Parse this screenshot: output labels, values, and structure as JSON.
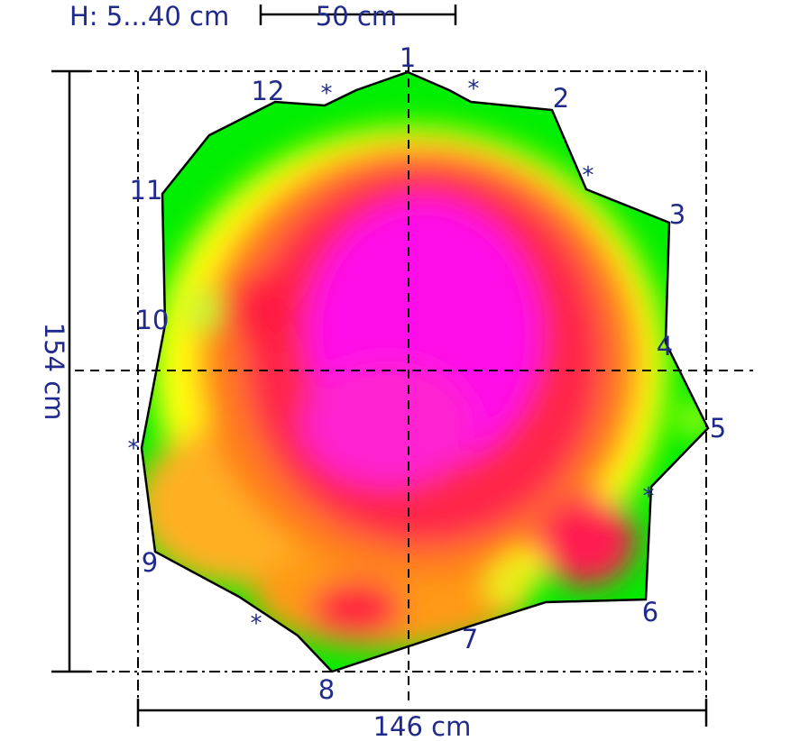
{
  "header": {
    "height_range": "H: 5...40 cm",
    "scale_label": "50 cm"
  },
  "dimensions": {
    "width": "146 cm",
    "height": "154 cm"
  },
  "points": [
    "1",
    "2",
    "3",
    "4",
    "5",
    "6",
    "7",
    "8",
    "9",
    "10",
    "11",
    "12"
  ],
  "marker_symbol": "*",
  "colors": {
    "ink": "#1f2a8c",
    "low": "#00ee00",
    "mid_low": "#ffff00",
    "mid": "#ff8c1a",
    "mid_high": "#ff2040",
    "high": "#ff00ff"
  }
}
